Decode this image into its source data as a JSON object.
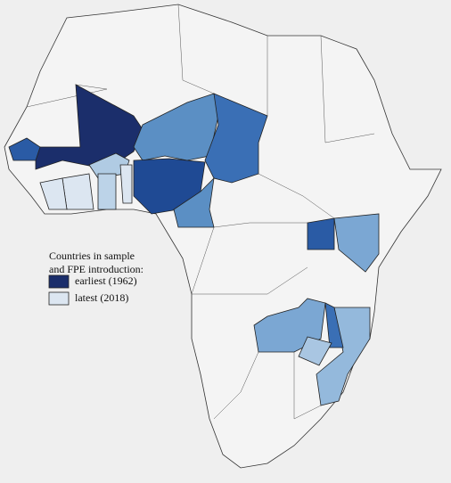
{
  "legend": {
    "title": [
      "Countries in sample",
      "and FPE introduction:"
    ],
    "items": [
      {
        "label": "earliest (1962)",
        "color": "#1b2e6b"
      },
      {
        "label": "latest (2018)",
        "color": "#dce6f1"
      }
    ]
  }
}
